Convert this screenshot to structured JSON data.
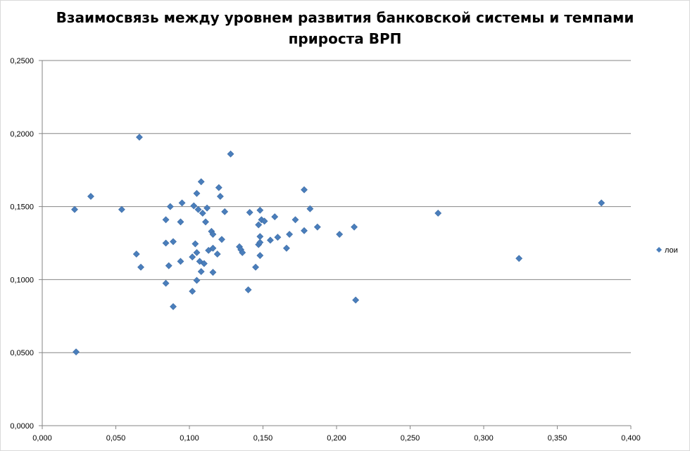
{
  "chart_data": {
    "type": "scatter",
    "title": "Взаимосвязь между уровнем развития банковской системы и темпами прироста ВРП",
    "title_lines": [
      "Взаимосвязь между уровнем развития банковской системы и темпами",
      "прироста ВРП"
    ],
    "xlabel": "",
    "ylabel": "",
    "xlim": [
      0,
      0.4
    ],
    "ylim": [
      0,
      0.25
    ],
    "x_ticks": [
      0,
      0.05,
      0.1,
      0.15,
      0.2,
      0.25,
      0.3,
      0.35,
      0.4
    ],
    "y_ticks": [
      0,
      0.05,
      0.1,
      0.15,
      0.2,
      0.25
    ],
    "x_tick_labels": [
      "0,000",
      "0,050",
      "0,100",
      "0,150",
      "0,200",
      "0,250",
      "0,300",
      "0,350",
      "0,400"
    ],
    "y_tick_labels": [
      "0,0000",
      "0,0500",
      "0,1000",
      "0,1500",
      "0,2000",
      "0,2500"
    ],
    "grid": "horizontal",
    "legend_position": "right",
    "series": [
      {
        "name": "лои",
        "color": "#4a7ebb",
        "marker": "diamond",
        "points": [
          [
            0.022,
            0.148
          ],
          [
            0.023,
            0.0505
          ],
          [
            0.033,
            0.157
          ],
          [
            0.054,
            0.148
          ],
          [
            0.064,
            0.1175
          ],
          [
            0.066,
            0.1975
          ],
          [
            0.067,
            0.1085
          ],
          [
            0.084,
            0.125
          ],
          [
            0.084,
            0.0975
          ],
          [
            0.084,
            0.141
          ],
          [
            0.086,
            0.1095
          ],
          [
            0.087,
            0.15
          ],
          [
            0.089,
            0.126
          ],
          [
            0.089,
            0.0815
          ],
          [
            0.094,
            0.1395
          ],
          [
            0.094,
            0.1125
          ],
          [
            0.095,
            0.1525
          ],
          [
            0.102,
            0.1155
          ],
          [
            0.102,
            0.092
          ],
          [
            0.103,
            0.1505
          ],
          [
            0.104,
            0.1245
          ],
          [
            0.105,
            0.0995
          ],
          [
            0.105,
            0.1185
          ],
          [
            0.105,
            0.159
          ],
          [
            0.106,
            0.148
          ],
          [
            0.107,
            0.1125
          ],
          [
            0.108,
            0.167
          ],
          [
            0.108,
            0.1055
          ],
          [
            0.109,
            0.1455
          ],
          [
            0.11,
            0.111
          ],
          [
            0.111,
            0.1395
          ],
          [
            0.112,
            0.149
          ],
          [
            0.113,
            0.12
          ],
          [
            0.115,
            0.133
          ],
          [
            0.116,
            0.131
          ],
          [
            0.116,
            0.1215
          ],
          [
            0.116,
            0.105
          ],
          [
            0.119,
            0.1175
          ],
          [
            0.12,
            0.163
          ],
          [
            0.121,
            0.157
          ],
          [
            0.122,
            0.1275
          ],
          [
            0.124,
            0.1465
          ],
          [
            0.128,
            0.186
          ],
          [
            0.134,
            0.1225
          ],
          [
            0.135,
            0.1205
          ],
          [
            0.136,
            0.1185
          ],
          [
            0.14,
            0.093
          ],
          [
            0.141,
            0.146
          ],
          [
            0.145,
            0.1085
          ],
          [
            0.147,
            0.1375
          ],
          [
            0.147,
            0.124
          ],
          [
            0.148,
            0.1475
          ],
          [
            0.148,
            0.1295
          ],
          [
            0.148,
            0.1255
          ],
          [
            0.148,
            0.1165
          ],
          [
            0.149,
            0.141
          ],
          [
            0.151,
            0.14
          ],
          [
            0.155,
            0.127
          ],
          [
            0.158,
            0.143
          ],
          [
            0.16,
            0.129
          ],
          [
            0.166,
            0.1215
          ],
          [
            0.168,
            0.131
          ],
          [
            0.172,
            0.141
          ],
          [
            0.178,
            0.1615
          ],
          [
            0.178,
            0.1335
          ],
          [
            0.182,
            0.1485
          ],
          [
            0.187,
            0.136
          ],
          [
            0.202,
            0.131
          ],
          [
            0.212,
            0.136
          ],
          [
            0.213,
            0.086
          ],
          [
            0.269,
            0.1455
          ],
          [
            0.324,
            0.1145
          ],
          [
            0.38,
            0.1525
          ]
        ]
      }
    ]
  }
}
